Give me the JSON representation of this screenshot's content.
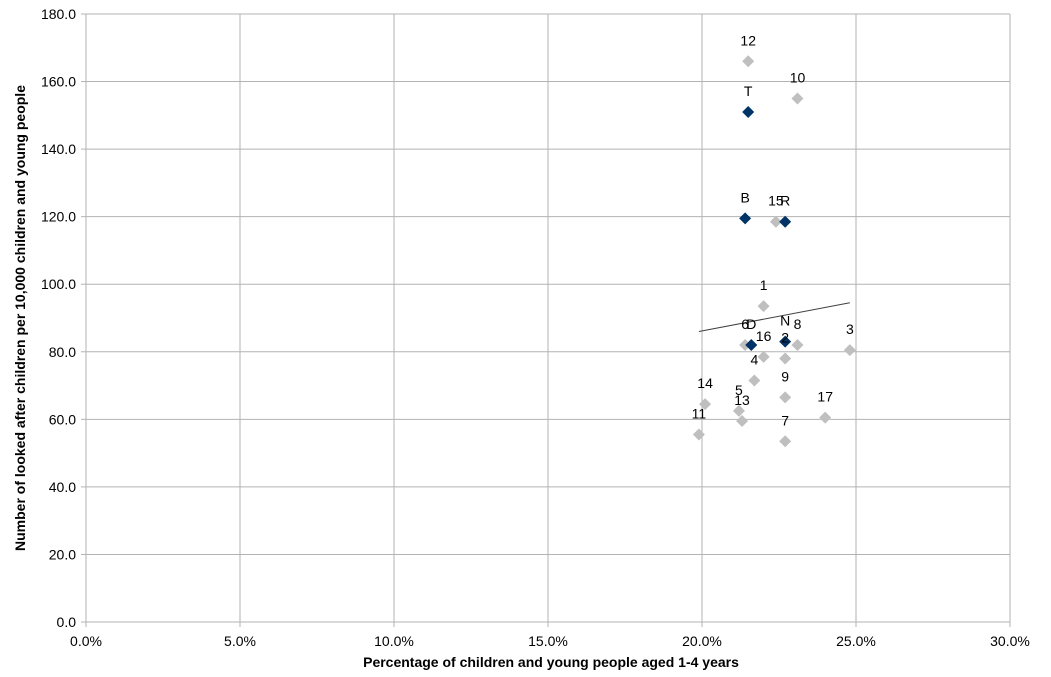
{
  "chart_data": {
    "type": "scatter",
    "title": "",
    "xlabel": "Percentage of children and young people aged 1-4 years",
    "ylabel": "Number of looked after children per 10,000 children and young people",
    "xlim": [
      0,
      0.3
    ],
    "ylim": [
      0,
      180
    ],
    "x_ticks": [
      "0.0%",
      "5.0%",
      "10.0%",
      "15.0%",
      "20.0%",
      "25.0%",
      "30.0%"
    ],
    "y_ticks": [
      "0.0",
      "20.0",
      "40.0",
      "60.0",
      "80.0",
      "100.0",
      "120.0",
      "140.0",
      "160.0",
      "180.0"
    ],
    "grid": true,
    "legend": "none",
    "colors": {
      "grey": "#bfbfbf",
      "highlight": "#003366",
      "grid": "#b3b3b3",
      "trendline": "#404040"
    },
    "series": [
      {
        "color": "#bfbfbf",
        "points": [
          {
            "label": "1",
            "x": 0.22,
            "y": 93.5
          },
          {
            "label": "2",
            "x": 0.227,
            "y": 78.0
          },
          {
            "label": "3",
            "x": 0.248,
            "y": 80.5
          },
          {
            "label": "4",
            "x": 0.217,
            "y": 71.5
          },
          {
            "label": "5",
            "x": 0.212,
            "y": 62.5
          },
          {
            "label": "6",
            "x": 0.214,
            "y": 82.0
          },
          {
            "label": "7",
            "x": 0.227,
            "y": 53.5
          },
          {
            "label": "8",
            "x": 0.231,
            "y": 82.0
          },
          {
            "label": "9",
            "x": 0.227,
            "y": 66.5
          },
          {
            "label": "10",
            "x": 0.231,
            "y": 155.0
          },
          {
            "label": "11",
            "x": 0.199,
            "y": 55.5
          },
          {
            "label": "12",
            "x": 0.215,
            "y": 166.0
          },
          {
            "label": "13",
            "x": 0.213,
            "y": 59.5
          },
          {
            "label": "14",
            "x": 0.201,
            "y": 64.5
          },
          {
            "label": "15",
            "x": 0.224,
            "y": 118.5
          },
          {
            "label": "16",
            "x": 0.22,
            "y": 78.5
          },
          {
            "label": "17",
            "x": 0.24,
            "y": 60.5
          }
        ]
      },
      {
        "color": "#003366",
        "points": [
          {
            "label": "T",
            "x": 0.215,
            "y": 151.0
          },
          {
            "label": "B",
            "x": 0.214,
            "y": 119.5
          },
          {
            "label": "R",
            "x": 0.227,
            "y": 118.5
          },
          {
            "label": "D",
            "x": 0.216,
            "y": 82.0
          },
          {
            "label": "N",
            "x": 0.227,
            "y": 83.0
          }
        ]
      }
    ],
    "trendline": {
      "x1": 0.199,
      "y1": 86.0,
      "x2": 0.248,
      "y2": 94.5
    }
  }
}
